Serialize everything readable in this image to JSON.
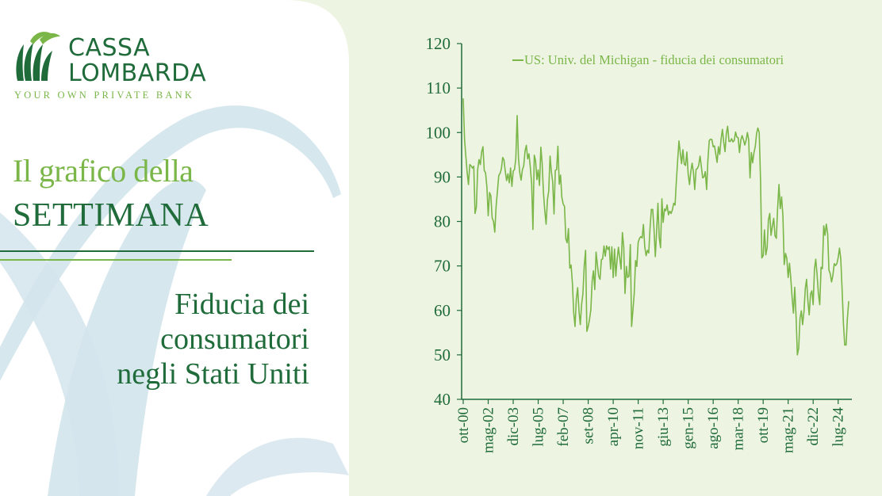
{
  "brand": {
    "line1": "CASSA",
    "line2": "LOMBARDA",
    "tagline": "YOUR OWN PRIVATE BANK",
    "logo_icon": "wheat-leaves-icon"
  },
  "heading": {
    "line1": "Il grafico della",
    "line2": "SETTIMANA"
  },
  "subtitle": {
    "line1": "Fiducia dei",
    "line2": "consumatori",
    "line3": "negli Stati Uniti"
  },
  "colors": {
    "dark_green": "#1f6b3a",
    "light_green": "#7ab648",
    "panel_bg": "#eef4e2",
    "watermark": "#d3e4ec"
  },
  "chart_data": {
    "type": "line",
    "legend": "US: Univ. del Michigan - fiducia dei consumatori",
    "legend_position": "top-right",
    "ylim": [
      40,
      120
    ],
    "yticks": [
      40,
      50,
      60,
      70,
      80,
      90,
      100,
      110,
      120
    ],
    "xticks": [
      "ott-00",
      "mag-02",
      "dic-03",
      "lug-05",
      "feb-07",
      "set-08",
      "apr-10",
      "nov-11",
      "giu-13",
      "gen-15",
      "ago-16",
      "mar-18",
      "ott-19",
      "mag-21",
      "dic-22",
      "lug-24"
    ],
    "grid": false,
    "series": [
      {
        "name": "US: Univ. del Michigan - fiducia dei consumatori",
        "color": "#7ab648",
        "x_start": "ott-00",
        "x_end": "apr-25",
        "frequency": "monthly",
        "values": [
          107.6,
          98.4,
          94.7,
          91.0,
          88.3,
          92.8,
          92.5,
          92.0,
          92.4,
          81.8,
          83.2,
          91.6,
          93.9,
          92.8,
          95.6,
          96.8,
          91.5,
          90.9,
          87.7,
          81.3,
          86.5,
          85.8,
          80.8,
          80.0,
          77.6,
          83.4,
          86.7,
          90.3,
          90.8,
          91.8,
          94.4,
          93.8,
          91.2,
          89.2,
          90.7,
          88.7,
          92.0,
          87.9,
          91.3,
          91.7,
          94.1,
          103.8,
          94.2,
          91.0,
          89.3,
          91.6,
          92.5,
          95.9,
          97.1,
          94.1,
          95.2,
          92.2,
          88.5,
          78.2,
          94.9,
          93.7,
          89.4,
          91.6,
          88.1,
          96.7,
          93.1,
          86.4,
          82.5,
          79.4,
          84.9,
          86.8,
          94.7,
          91.3,
          88.9,
          81.7,
          91.5,
          91.7,
          96.9,
          88.4,
          90.4,
          85.4,
          83.9,
          83.4,
          76.1,
          75.2,
          78.4,
          69.5,
          70.2,
          66.1,
          59.5,
          56.4,
          62.6,
          65.1,
          59.8,
          56.8,
          61.4,
          63.7,
          70.1,
          73.5,
          55.3,
          56.4,
          57.9,
          60.1,
          66.7,
          68.9,
          64.7,
          73.1,
          70.2,
          67.7,
          67.0,
          71.4,
          71.6,
          74.5,
          72.2,
          74.5,
          73.7,
          74.3,
          69.3,
          74.3,
          67.4,
          73.8,
          67.7,
          71.6,
          74.2,
          71.7,
          69.3,
          77.5,
          74.3,
          63.8,
          69.9,
          67.4,
          67.7,
          74.8,
          56.4,
          60.1,
          63.7,
          71.2,
          69.9,
          75.3,
          76.2,
          76.6,
          76.3,
          79.3,
          74.3,
          72.3,
          73.5,
          72.9,
          78.3,
          82.7,
          82.7,
          78.4,
          72.1,
          77.6,
          84.1,
          76.4,
          74.1,
          85.1,
          79.8,
          82.8,
          82.4,
          83.7,
          81.5,
          82.3,
          81.8,
          82.6,
          84.1,
          83.7,
          89.0,
          93.8,
          98.1,
          95.4,
          93.0,
          96.1,
          92.9,
          92.6,
          95.6,
          90.7,
          88.3,
          91.3,
          93.1,
          91.0,
          87.2,
          91.7,
          91.9,
          92.6,
          94.7,
          92.4,
          89.8,
          90.0,
          91.2,
          87.2,
          93.8,
          98.2,
          98.5,
          98.4,
          96.8,
          97.0,
          95.1,
          93.3,
          96.8,
          95.1,
          98.5,
          100.7,
          97.9,
          95.7,
          99.7,
          101.4,
          98.0,
          98.0,
          98.6,
          97.9,
          98.2,
          100.1,
          99.0,
          98.8,
          95.5,
          98.3,
          99.3,
          98.4,
          97.2,
          98.2,
          100.0,
          98.4,
          89.8,
          95.5,
          93.2,
          95.5,
          96.8,
          99.8,
          101.0,
          100.0,
          89.1,
          71.8,
          72.3,
          78.1,
          72.5,
          74.1,
          80.4,
          81.8,
          76.9,
          79.0,
          80.7,
          76.8,
          76.2,
          83.0,
          88.3,
          82.9,
          85.5,
          81.2,
          70.3,
          72.8,
          71.7,
          67.4,
          70.6,
          67.2,
          62.8,
          59.4,
          65.2,
          58.4,
          50.0,
          51.5,
          58.2,
          59.9,
          56.8,
          59.7,
          64.9,
          67.0,
          62.0,
          59.0,
          63.7,
          64.4,
          61.3,
          69.4,
          71.5,
          67.9,
          63.8,
          61.3,
          69.7,
          69.4,
          79.0,
          76.9,
          79.4,
          77.2,
          69.1,
          68.2,
          66.4,
          67.9,
          70.5,
          70.1,
          70.5,
          71.8,
          74.0,
          71.7,
          64.7,
          57.0,
          52.2,
          52.2,
          58.0,
          62.0
        ]
      }
    ]
  }
}
